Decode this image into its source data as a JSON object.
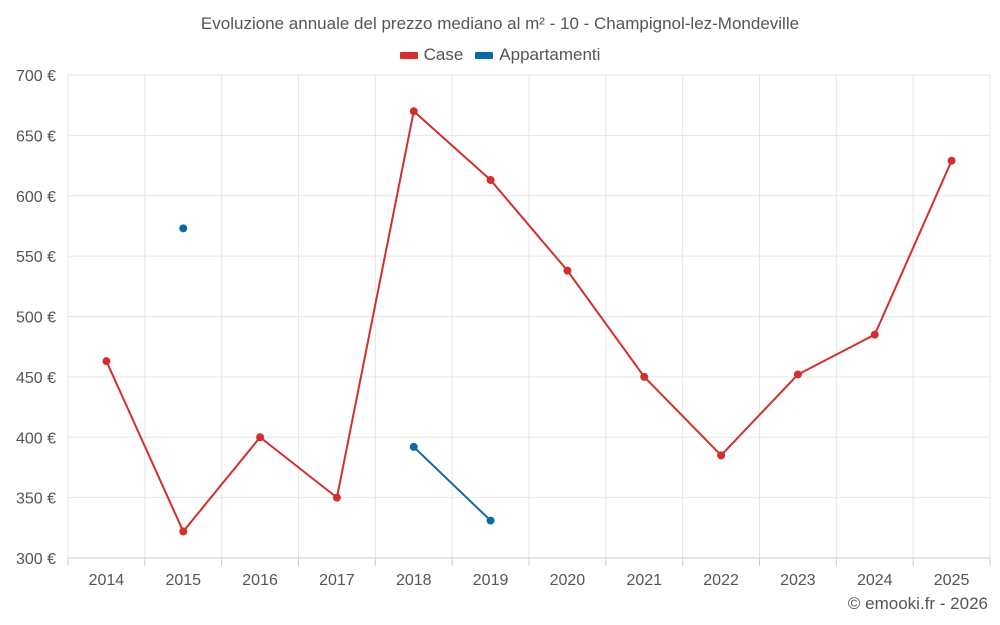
{
  "chart_data": {
    "type": "line",
    "title": "Evoluzione annuale del prezzo mediano al m² - 10 - Champignol-lez-Mondeville",
    "xlabel": "",
    "ylabel": "",
    "categories": [
      "2014",
      "2015",
      "2016",
      "2017",
      "2018",
      "2019",
      "2020",
      "2021",
      "2022",
      "2023",
      "2024",
      "2025"
    ],
    "ylim": [
      300,
      700
    ],
    "yticks": [
      300,
      350,
      400,
      450,
      500,
      550,
      600,
      650,
      700
    ],
    "ytick_labels": [
      "300 €",
      "350 €",
      "400 €",
      "450 €",
      "500 €",
      "550 €",
      "600 €",
      "650 €",
      "700 €"
    ],
    "grid": true,
    "legend": "top-center",
    "series": [
      {
        "name": "Case",
        "color": "#d32f2f",
        "values": [
          463,
          322,
          400,
          350,
          670,
          613,
          538,
          450,
          385,
          452,
          485,
          629
        ]
      },
      {
        "name": "Appartamenti",
        "color": "#0a6aa1",
        "values": [
          null,
          573,
          null,
          null,
          392,
          331,
          null,
          null,
          null,
          null,
          null,
          null
        ]
      }
    ]
  },
  "footer": {
    "copyright": "© emooki.fr - 2026"
  }
}
